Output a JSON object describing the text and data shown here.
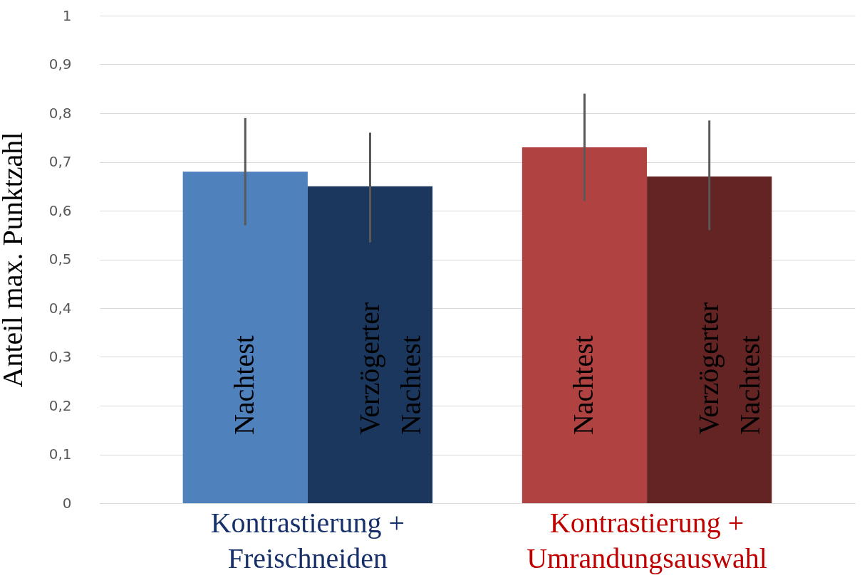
{
  "chart_data": {
    "type": "bar",
    "ylabel": "Anteil max. Punktzahl",
    "categories": [
      "Kontrastierung + Freischneiden",
      "Kontrastierung + Umrandungsauswahl"
    ],
    "series": [
      {
        "name": "Nachtest",
        "colors": [
          "#4f81bd",
          "#b04341"
        ],
        "values": [
          0.68,
          0.73
        ],
        "errors": [
          [
            0.57,
            0.79
          ],
          [
            0.62,
            0.84
          ]
        ]
      },
      {
        "name": "Verzögerter Nachtest",
        "colors": [
          "#1b375d",
          "#632423"
        ],
        "values": [
          0.65,
          0.67
        ],
        "errors": [
          [
            0.535,
            0.76
          ],
          [
            0.56,
            0.785
          ]
        ]
      }
    ],
    "ylim": [
      0,
      1
    ],
    "yticks": [
      0,
      {
        "value": 0.1,
        "label": "0,1"
      },
      {
        "value": 0.2,
        "label": "0,2"
      },
      {
        "value": 0.3,
        "label": "0,3"
      },
      {
        "value": 0.4,
        "label": "0,4"
      },
      {
        "value": 0.5,
        "label": "0,5"
      },
      {
        "value": 0.6,
        "label": "0,6"
      },
      {
        "value": 0.7,
        "label": "0,7"
      },
      {
        "value": 0.8,
        "label": "0,8"
      },
      {
        "value": 0.9,
        "label": "0,9"
      },
      1
    ],
    "grid": "y"
  }
}
